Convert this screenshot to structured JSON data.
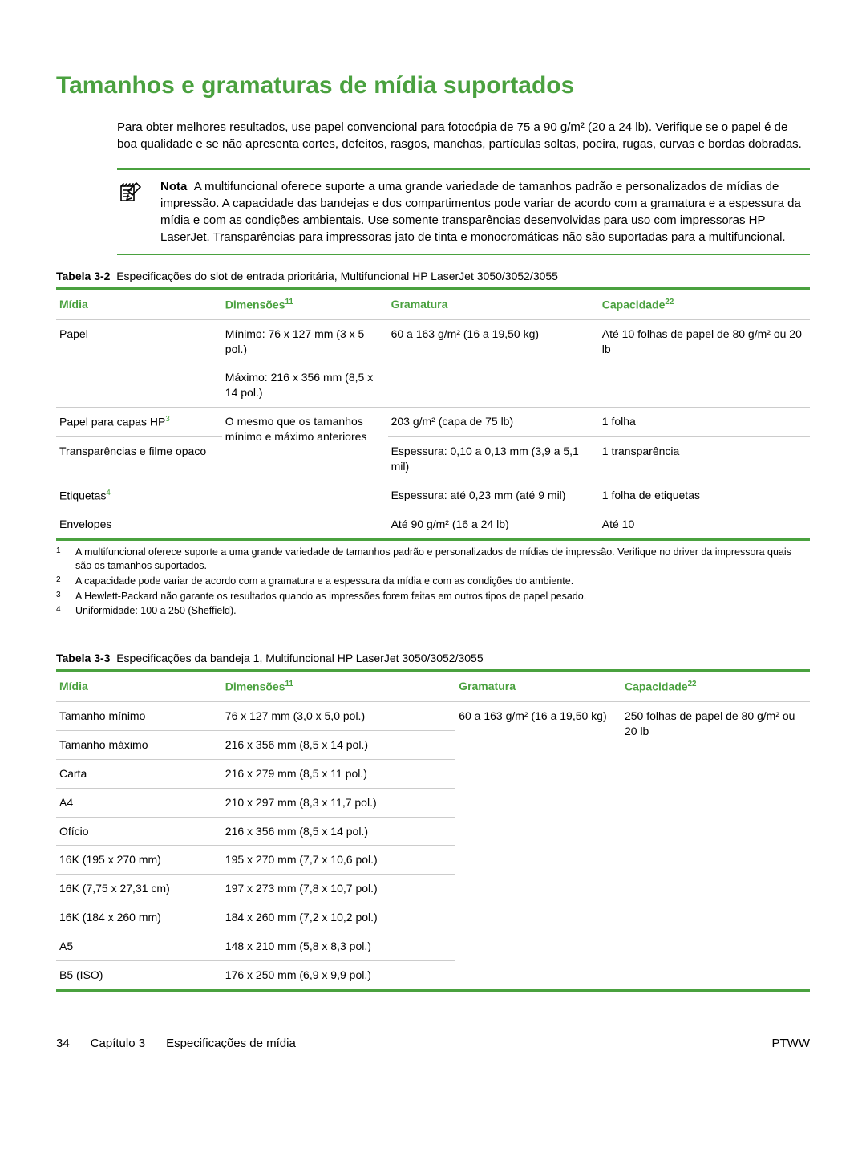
{
  "colors": {
    "accent": "#4aa13f",
    "text": "#000000",
    "rule_light": "#cccccc",
    "sup_accent": "#4aa13f"
  },
  "heading": "Tamanhos e gramaturas de mídia suportados",
  "intro": "Para obter melhores resultados, use papel convencional para fotocópia de 75 a 90 g/m² (20 a 24 lb). Verifique se o papel é de boa qualidade e se não apresenta cortes, defeitos, rasgos, manchas, partículas soltas, poeira, rugas, curvas e bordas dobradas.",
  "note": {
    "label": "Nota",
    "body": "A multifuncional oferece suporte a uma grande variedade de tamanhos padrão e personalizados de mídias de impressão. A capacidade das bandejas e dos compartimentos pode variar de acordo com a gramatura e a espessura da mídia e com as condições ambientais. Use somente transparências desenvolvidas para uso com impressoras HP LaserJet. Transparências para impressoras jato de tinta e monocromáticas não são suportadas para a multifuncional."
  },
  "table1": {
    "caption_num": "Tabela 3-2",
    "caption_text": "Especificações do slot de entrada prioritária, Multifuncional HP LaserJet 3050/3052/3055",
    "headers": {
      "media": "Mídia",
      "dim": "Dimensões",
      "dim_sup": "11",
      "gram": "Gramatura",
      "cap": "Capacidade",
      "cap_sup": "22"
    },
    "rows": {
      "r1_media": "Papel",
      "r1_dim_a": "Mínimo: 76 x 127 mm (3 x 5 pol.)",
      "r1_dim_b": "Máximo: 216 x 356 mm (8,5 x 14 pol.)",
      "r1_gram": "60 a 163 g/m² (16 a 19,50 kg)",
      "r1_cap": "Até 10 folhas de papel de 80 g/m² ou 20 lb",
      "r2_media": "Papel para capas HP",
      "r2_media_sup": "3",
      "r2_dim": "O mesmo que os tamanhos mínimo e máximo anteriores",
      "r2_gram": "203 g/m² (capa de 75 lb)",
      "r2_cap": "1 folha",
      "r3_media": "Transparências e filme opaco",
      "r3_gram": "Espessura: 0,10 a 0,13 mm (3,9 a 5,1 mil)",
      "r3_cap": "1 transparência",
      "r4_media": "Etiquetas",
      "r4_media_sup": "4",
      "r4_gram": "Espessura: até 0,23 mm (até 9 mil)",
      "r4_cap": "1 folha de etiquetas",
      "r5_media": "Envelopes",
      "r5_gram": "Até 90 g/m² (16 a 24 lb)",
      "r5_cap": "Até 10"
    },
    "footnotes": {
      "f1": "A multifuncional oferece suporte a uma grande variedade de tamanhos padrão e personalizados de mídias de impressão. Verifique no driver da impressora quais são os tamanhos suportados.",
      "f2": "A capacidade pode variar de acordo com a gramatura e a espessura da mídia e com as condições do ambiente.",
      "f3": "A Hewlett-Packard não garante os resultados quando as impressões forem feitas em outros tipos de papel pesado.",
      "f4": "Uniformidade: 100 a 250 (Sheffield)."
    }
  },
  "table2": {
    "caption_num": "Tabela 3-3",
    "caption_text": "Especificações da bandeja 1, Multifuncional HP LaserJet 3050/3052/3055",
    "headers": {
      "media": "Mídia",
      "dim": "Dimensões",
      "dim_sup": "11",
      "gram": "Gramatura",
      "cap": "Capacidade",
      "cap_sup": "22"
    },
    "gram_span": "60 a 163 g/m² (16 a 19,50 kg)",
    "cap_span": "250 folhas de papel de 80 g/m² ou 20 lb",
    "rows": [
      {
        "media": "Tamanho mínimo",
        "dim": "76 x 127 mm (3,0 x 5,0 pol.)"
      },
      {
        "media": "Tamanho máximo",
        "dim": "216 x 356 mm (8,5 x 14 pol.)"
      },
      {
        "media": "Carta",
        "dim": "216 x 279 mm (8,5 x 11 pol.)"
      },
      {
        "media": "A4",
        "dim": "210 x 297 mm (8,3 x 11,7 pol.)"
      },
      {
        "media": "Ofício",
        "dim": "216 x 356 mm (8,5 x 14 pol.)"
      },
      {
        "media": "16K (195 x 270 mm)",
        "dim": "195 x 270 mm (7,7 x 10,6 pol.)"
      },
      {
        "media": "16K (7,75 x 27,31 cm)",
        "dim": "197 x 273 mm (7,8 x 10,7 pol.)"
      },
      {
        "media": "16K (184 x 260 mm)",
        "dim": "184 x 260 mm (7,2 x 10,2 pol.)"
      },
      {
        "media": "A5",
        "dim": "148 x 210 mm (5,8 x 8,3 pol.)"
      },
      {
        "media": "B5 (ISO)",
        "dim": "176 x 250 mm (6,9 x 9,9 pol.)"
      }
    ]
  },
  "footer": {
    "page": "34",
    "chapter": "Capítulo 3",
    "section": "Especificações de mídia",
    "lang": "PTWW"
  }
}
